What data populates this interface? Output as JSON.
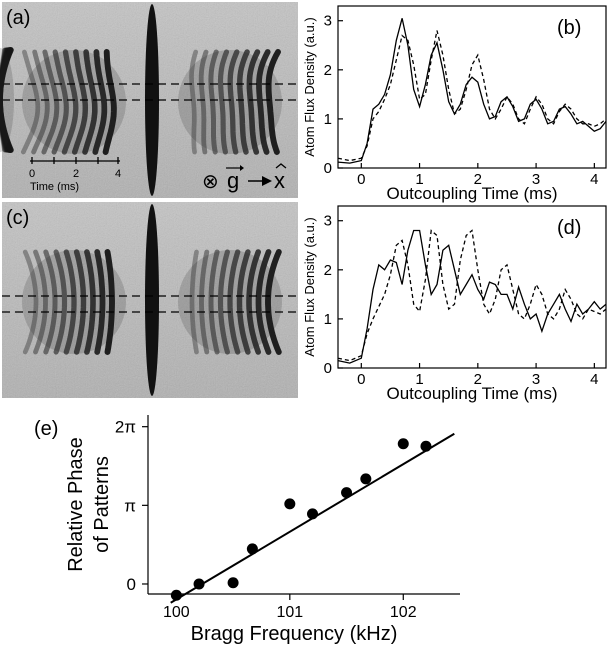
{
  "colors": {
    "line": "#000000",
    "image_bg": "#b8b8b8",
    "fringe": "#161616"
  },
  "panels": {
    "a": {
      "label": "(a)",
      "scale_ticks": [
        "0",
        "2",
        "4"
      ],
      "scale_label": "Time (ms)",
      "axis_text": "⊗ g → x",
      "g_symbol": "g",
      "x_symbol": "x",
      "otimes": "⊗"
    },
    "c": {
      "label": "(c)"
    },
    "b": {
      "label": "(b)"
    },
    "d": {
      "label": "(d)"
    },
    "e": {
      "label": "(e)"
    }
  },
  "chart_data": [
    {
      "id": "b",
      "type": "line",
      "title": "",
      "xlabel": "Outcoupling Time (ms)",
      "ylabel": "Atom Flux Density (a.u.)",
      "xlim": [
        -0.4,
        4.2
      ],
      "ylim": [
        0,
        3.3
      ],
      "xticks": [
        0,
        1,
        2,
        3,
        4
      ],
      "yticks": [
        0,
        1,
        2,
        3
      ],
      "series": [
        {
          "style": "solid",
          "x": [
            -0.4,
            -0.2,
            0,
            0.1,
            0.2,
            0.3,
            0.4,
            0.5,
            0.6,
            0.7,
            0.8,
            0.9,
            1.0,
            1.1,
            1.2,
            1.3,
            1.4,
            1.5,
            1.6,
            1.7,
            1.8,
            1.9,
            2.0,
            2.1,
            2.2,
            2.3,
            2.4,
            2.5,
            2.6,
            2.7,
            2.8,
            2.9,
            3.0,
            3.1,
            3.2,
            3.3,
            3.4,
            3.5,
            3.6,
            3.7,
            3.8,
            3.9,
            4.0,
            4.1,
            4.2
          ],
          "y": [
            0.12,
            0.1,
            0.15,
            0.5,
            1.2,
            1.3,
            1.5,
            1.9,
            2.6,
            3.05,
            2.5,
            1.6,
            1.25,
            1.7,
            2.3,
            2.55,
            2.0,
            1.35,
            1.1,
            1.3,
            1.7,
            1.85,
            1.75,
            1.3,
            1.0,
            1.05,
            1.35,
            1.45,
            1.25,
            0.95,
            1.0,
            1.3,
            1.4,
            1.2,
            0.9,
            0.95,
            1.2,
            1.25,
            1.1,
            0.9,
            0.95,
            0.85,
            0.75,
            0.8,
            0.95
          ]
        },
        {
          "style": "dashed",
          "x": [
            -0.4,
            -0.2,
            0,
            0.1,
            0.2,
            0.3,
            0.4,
            0.5,
            0.6,
            0.7,
            0.8,
            0.9,
            1.0,
            1.1,
            1.2,
            1.3,
            1.4,
            1.5,
            1.6,
            1.7,
            1.8,
            1.9,
            2.0,
            2.1,
            2.2,
            2.3,
            2.4,
            2.5,
            2.6,
            2.7,
            2.8,
            2.9,
            3.0,
            3.1,
            3.2,
            3.3,
            3.4,
            3.5,
            3.6,
            3.7,
            3.8,
            3.9,
            4.0,
            4.1,
            4.2
          ],
          "y": [
            0.2,
            0.15,
            0.2,
            0.45,
            1.0,
            1.15,
            1.4,
            1.7,
            2.2,
            2.7,
            2.6,
            2.1,
            1.4,
            1.5,
            2.2,
            2.8,
            2.3,
            1.6,
            1.1,
            1.2,
            1.6,
            2.1,
            2.3,
            1.8,
            1.2,
            1.0,
            1.2,
            1.45,
            1.3,
            1.0,
            0.9,
            1.2,
            1.45,
            1.3,
            1.0,
            0.9,
            1.15,
            1.3,
            1.2,
            1.0,
            0.9,
            0.9,
            0.85,
            0.9,
            1.0
          ]
        }
      ]
    },
    {
      "id": "d",
      "type": "line",
      "title": "",
      "xlabel": "Outcoupling Time (ms)",
      "ylabel": "Atom Flux Density (a.u.)",
      "xlim": [
        -0.4,
        4.2
      ],
      "ylim": [
        0,
        3.3
      ],
      "xticks": [
        0,
        1,
        2,
        3,
        4
      ],
      "yticks": [
        0,
        1,
        2,
        3
      ],
      "series": [
        {
          "style": "solid",
          "x": [
            -0.4,
            -0.2,
            0,
            0.1,
            0.2,
            0.3,
            0.4,
            0.5,
            0.6,
            0.7,
            0.8,
            0.9,
            1.0,
            1.1,
            1.2,
            1.3,
            1.4,
            1.5,
            1.6,
            1.7,
            1.8,
            1.9,
            2.0,
            2.1,
            2.2,
            2.3,
            2.4,
            2.5,
            2.6,
            2.7,
            2.8,
            2.9,
            3.0,
            3.1,
            3.2,
            3.3,
            3.4,
            3.5,
            3.6,
            3.7,
            3.8,
            3.9,
            4.0,
            4.1,
            4.2
          ],
          "y": [
            0.15,
            0.1,
            0.2,
            0.8,
            1.6,
            2.1,
            2.0,
            2.2,
            2.15,
            1.7,
            2.4,
            2.8,
            2.8,
            2.1,
            1.5,
            1.7,
            2.4,
            2.5,
            2.0,
            1.5,
            1.7,
            1.9,
            1.6,
            1.4,
            1.75,
            1.7,
            1.5,
            1.5,
            1.2,
            1.65,
            1.3,
            1.0,
            1.1,
            0.75,
            1.1,
            1.3,
            1.5,
            1.2,
            0.95,
            1.3,
            1.1,
            1.2,
            1.35,
            1.2,
            1.3
          ]
        },
        {
          "style": "dashed",
          "x": [
            -0.4,
            -0.2,
            0,
            0.1,
            0.2,
            0.3,
            0.4,
            0.5,
            0.6,
            0.7,
            0.8,
            0.9,
            1.0,
            1.1,
            1.2,
            1.3,
            1.4,
            1.5,
            1.6,
            1.7,
            1.8,
            1.9,
            2.0,
            2.1,
            2.2,
            2.3,
            2.4,
            2.5,
            2.6,
            2.7,
            2.8,
            2.9,
            3.0,
            3.1,
            3.2,
            3.3,
            3.4,
            3.5,
            3.6,
            3.7,
            3.8,
            3.9,
            4.0,
            4.1,
            4.2
          ],
          "y": [
            0.2,
            0.15,
            0.25,
            0.7,
            1.0,
            1.25,
            1.5,
            1.9,
            2.5,
            2.6,
            2.1,
            1.3,
            1.15,
            1.8,
            2.8,
            2.7,
            1.7,
            1.2,
            1.3,
            2.2,
            2.7,
            2.8,
            2.0,
            1.3,
            1.1,
            1.4,
            2.0,
            2.1,
            1.6,
            1.1,
            1.0,
            1.3,
            1.7,
            1.5,
            1.1,
            1.0,
            1.2,
            1.6,
            1.4,
            1.1,
            1.0,
            1.2,
            1.15,
            1.1,
            1.2
          ]
        }
      ]
    },
    {
      "id": "e",
      "type": "scatter",
      "title": "",
      "xlabel": "Bragg Frequency (kHz)",
      "ylabel": [
        "Relative Phase",
        "of Patterns"
      ],
      "xlim": [
        99.75,
        102.5
      ],
      "ylim": [
        -0.4,
        6.75
      ],
      "xticks": [
        100,
        101,
        102
      ],
      "xtick_labels": [
        "100",
        "101",
        "102"
      ],
      "yticks": [
        0,
        3.1416,
        6.2832
      ],
      "ytick_labels": [
        "0",
        "π",
        "2π"
      ],
      "points": {
        "x": [
          100.0,
          100.2,
          100.5,
          100.67,
          101.0,
          101.2,
          101.5,
          101.67,
          102.0,
          102.2
        ],
        "y": [
          -0.45,
          0.0,
          0.05,
          1.4,
          3.2,
          2.8,
          3.65,
          4.2,
          5.6,
          5.5
        ]
      },
      "fit": {
        "x": [
          99.95,
          102.45
        ],
        "y": [
          -0.75,
          6.0
        ]
      }
    }
  ]
}
